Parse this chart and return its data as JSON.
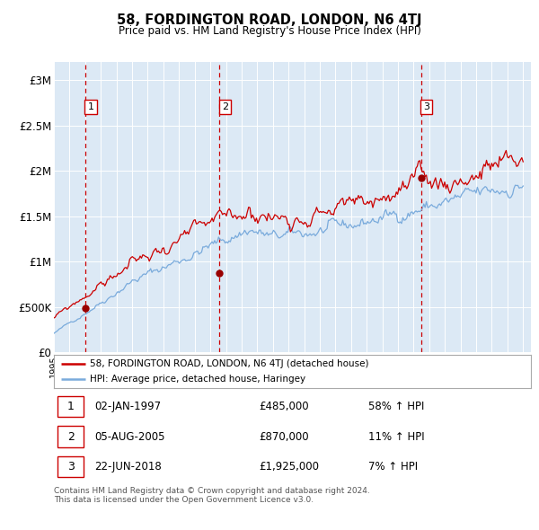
{
  "title": "58, FORDINGTON ROAD, LONDON, N6 4TJ",
  "subtitle": "Price paid vs. HM Land Registry's House Price Index (HPI)",
  "bg_color": "#dce9f5",
  "hpi_color": "#7aabdc",
  "price_color": "#cc0000",
  "sale_marker_color": "#990000",
  "vline_color": "#cc0000",
  "grid_color": "#ffffff",
  "ylim": [
    0,
    3200000
  ],
  "yticks": [
    0,
    500000,
    1000000,
    1500000,
    2000000,
    2500000,
    3000000
  ],
  "ytick_labels": [
    "£0",
    "£500K",
    "£1M",
    "£1.5M",
    "£2M",
    "£2.5M",
    "£3M"
  ],
  "year_start": 1995,
  "year_end": 2025,
  "sale1_date": 1997.01,
  "sale1_price": 485000,
  "sale2_date": 2005.59,
  "sale2_price": 870000,
  "sale3_date": 2018.47,
  "sale3_price": 1925000,
  "legend_line1": "58, FORDINGTON ROAD, LONDON, N6 4TJ (detached house)",
  "legend_line2": "HPI: Average price, detached house, Haringey",
  "table_rows": [
    {
      "num": "1",
      "date": "02-JAN-1997",
      "price": "£485,000",
      "hpi": "58% ↑ HPI"
    },
    {
      "num": "2",
      "date": "05-AUG-2005",
      "price": "£870,000",
      "hpi": "11% ↑ HPI"
    },
    {
      "num": "3",
      "date": "22-JUN-2018",
      "price": "£1,925,000",
      "hpi": "7% ↑ HPI"
    }
  ],
  "footer": "Contains HM Land Registry data © Crown copyright and database right 2024.\nThis data is licensed under the Open Government Licence v3.0."
}
